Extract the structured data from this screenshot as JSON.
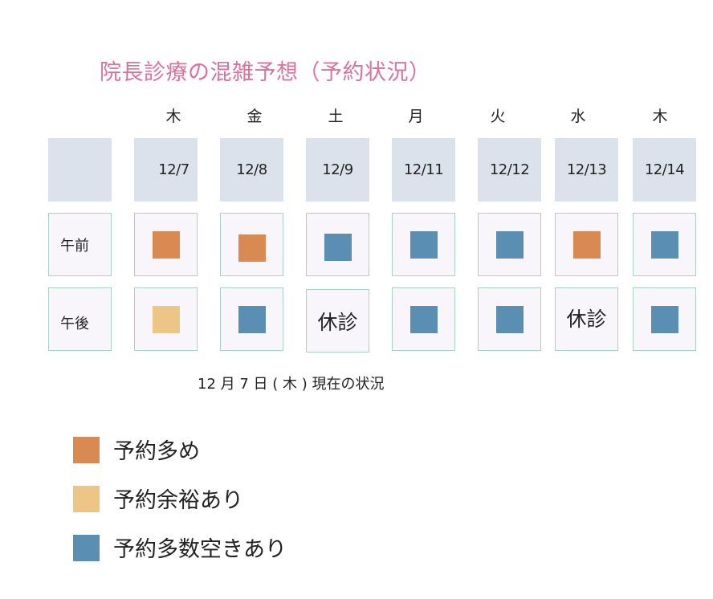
{
  "title": "院長診療の混雑予想（予約状況）",
  "colors": {
    "busy": "#d88a52",
    "some": "#edc586",
    "free": "#5a8fb3"
  },
  "weekdays": [
    "木",
    "金",
    "土",
    "月",
    "火",
    "水",
    "木"
  ],
  "dates": [
    "12/7",
    "12/8",
    "12/9",
    "12/11",
    "12/12",
    "12/13",
    "12/14"
  ],
  "rows": {
    "am_label": "午前",
    "pm_label": "午後"
  },
  "schedule": {
    "am": [
      "busy",
      "busy",
      "free",
      "free",
      "free",
      "busy",
      "free"
    ],
    "pm": [
      "some",
      "free",
      "closed",
      "free",
      "free",
      "closed",
      "free"
    ]
  },
  "closed_label": "休診",
  "caption": "12 月 7 日 ( 木 ) 現在の状況",
  "legend": [
    {
      "key": "busy",
      "label": "予約多め"
    },
    {
      "key": "some",
      "label": "予約余裕あり"
    },
    {
      "key": "free",
      "label": "予約多数空きあり"
    }
  ]
}
